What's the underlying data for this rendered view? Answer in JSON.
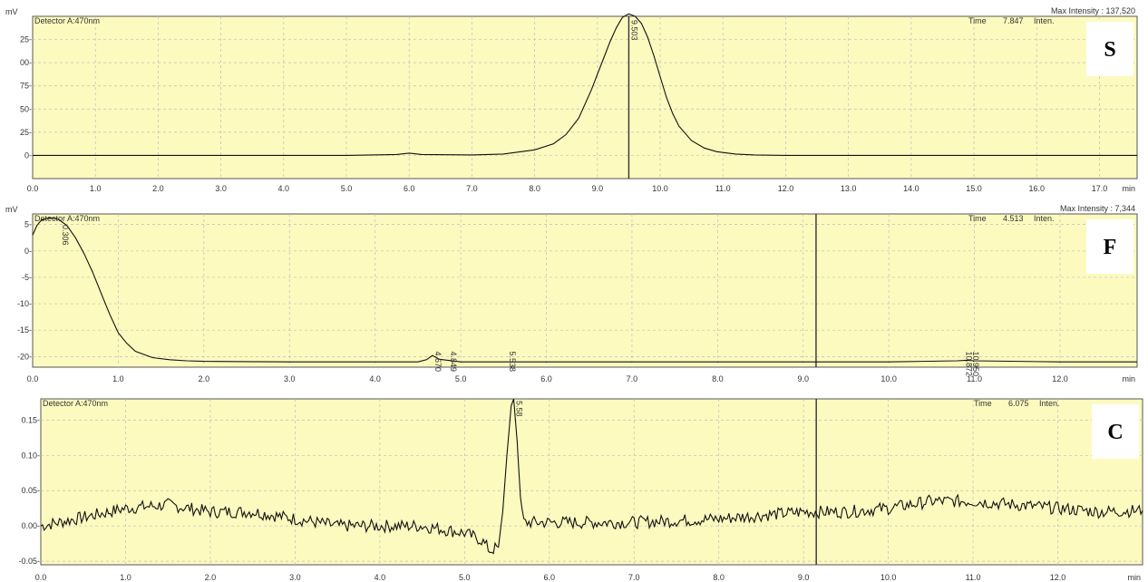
{
  "colors": {
    "plot_bg": "#fdfabf",
    "grid": "#bdbdbd",
    "trace": "#111111",
    "axis": "#555555"
  },
  "chart_data": [
    {
      "type": "line",
      "panel_letter": "S",
      "y_unit": "mV",
      "x_unit": "min",
      "detector_label": "Detector A:470nm",
      "max_intensity_text": "Max Intensity : 137,520",
      "time_label": "Time",
      "time_value": "7.847",
      "inten_label": "Inten.",
      "xlim": [
        0,
        17.6
      ],
      "ylim": [
        -5,
        30
      ],
      "x_ticks": [
        0,
        1,
        2,
        3,
        4,
        5,
        6,
        7,
        8,
        9,
        10,
        11,
        12,
        13,
        14,
        15,
        16,
        17
      ],
      "x_tick_labels": [
        "0.0",
        "1.0",
        "2.0",
        "3.0",
        "4.0",
        "5.0",
        "6.0",
        "7.0",
        "8.0",
        "9.0",
        "10.0",
        "11.0",
        "12.0",
        "13.0",
        "14.0",
        "15.0",
        "16.0",
        "17.0"
      ],
      "y_ticks": [
        0,
        5,
        10,
        15,
        20,
        25
      ],
      "y_tick_labels": [
        "0-",
        "25-",
        "50-",
        "75-",
        "00-",
        "25-"
      ],
      "cursor_x": 9.5,
      "peak_labels": [
        {
          "x": 9.5,
          "text": "9.503"
        }
      ],
      "series": [
        {
          "x": [
            0,
            1,
            2,
            3,
            4,
            5,
            5.8,
            6.0,
            6.2,
            7,
            7.5,
            8,
            8.3,
            8.5,
            8.7,
            8.9,
            9.0,
            9.1,
            9.2,
            9.3,
            9.4,
            9.5,
            9.6,
            9.7,
            9.8,
            9.9,
            10.0,
            10.1,
            10.2,
            10.3,
            10.5,
            10.7,
            10.9,
            11.2,
            11.5,
            12,
            13,
            14,
            15,
            16,
            17,
            17.6
          ],
          "y": [
            0,
            0,
            0,
            0,
            0,
            0,
            0.2,
            0.5,
            0.2,
            0.1,
            0.3,
            1.2,
            2.5,
            4.5,
            8,
            14,
            17.5,
            21,
            24.5,
            27.5,
            29.8,
            30.5,
            30,
            28.5,
            25.5,
            21.5,
            17,
            12.5,
            9,
            6.3,
            3.2,
            1.6,
            0.8,
            0.3,
            0.1,
            0,
            0,
            0,
            0,
            0,
            0,
            0
          ]
        }
      ]
    },
    {
      "type": "line",
      "panel_letter": "F",
      "y_unit": "mV",
      "x_unit": "min",
      "detector_label": "Detector A:470nm",
      "max_intensity_text": "Max Intensity :  7,344",
      "time_label": "Time",
      "time_value": "4.513",
      "inten_label": "Inten.",
      "xlim": [
        0,
        12.9
      ],
      "ylim": [
        -22,
        7
      ],
      "x_ticks": [
        0,
        1,
        2,
        3,
        4,
        5,
        6,
        7,
        8,
        9,
        10,
        11,
        12
      ],
      "x_tick_labels": [
        "0.0",
        "1.0",
        "2.0",
        "3.0",
        "4.0",
        "5.0",
        "6.0",
        "7.0",
        "8.0",
        "9.0",
        "10.0",
        "11.0",
        "12.0"
      ],
      "y_ticks": [
        -20,
        -15,
        -10,
        -5,
        0,
        5
      ],
      "y_tick_labels": [
        "-20-",
        "-15-",
        "-10-",
        "-5-",
        "0-",
        "5-"
      ],
      "cursor_x": 9.15,
      "peak_labels": [
        {
          "x": 0.32,
          "text": "0.306"
        },
        {
          "x": 4.67,
          "text": "4.670"
        },
        {
          "x": 4.85,
          "text": "4.849"
        },
        {
          "x": 5.54,
          "text": "5.538"
        },
        {
          "x": 10.87,
          "text": "10.872"
        },
        {
          "x": 10.95,
          "text": "10.950"
        }
      ],
      "series": [
        {
          "x": [
            0,
            0.05,
            0.1,
            0.2,
            0.3,
            0.4,
            0.5,
            0.6,
            0.7,
            0.8,
            0.9,
            1.0,
            1.1,
            1.2,
            1.4,
            1.6,
            1.8,
            2.0,
            3,
            4,
            4.5,
            4.6,
            4.67,
            4.75,
            4.85,
            5,
            5.5,
            6,
            7,
            8,
            9,
            10,
            10.8,
            10.9,
            11,
            12,
            12.9
          ],
          "y": [
            3,
            4.8,
            5.8,
            6.3,
            6.0,
            4.8,
            2.5,
            -0.5,
            -4,
            -8,
            -12,
            -15.5,
            -17.5,
            -19,
            -20.2,
            -20.6,
            -20.8,
            -20.9,
            -21,
            -21,
            -21,
            -20.6,
            -19.8,
            -20.5,
            -20.7,
            -21,
            -21,
            -21,
            -21,
            -21,
            -21,
            -21,
            -20.8,
            -20.7,
            -20.8,
            -21,
            -21
          ]
        }
      ]
    },
    {
      "type": "line",
      "panel_letter": "C",
      "y_unit": "",
      "x_unit": "min",
      "detector_label": "Detector A:470nm",
      "time_label": "Time",
      "time_value": "6.075",
      "inten_label": "Inten.",
      "xlim": [
        0,
        13.0
      ],
      "ylim": [
        -0.055,
        0.18
      ],
      "x_ticks": [
        0,
        1,
        2,
        3,
        4,
        5,
        6,
        7,
        8,
        9,
        10,
        11,
        12
      ],
      "x_tick_labels": [
        "0.0",
        "1.0",
        "2.0",
        "3.0",
        "4.0",
        "5.0",
        "6.0",
        "7.0",
        "8.0",
        "9.0",
        "10.0",
        "11.0",
        "12.0"
      ],
      "y_ticks": [
        -0.05,
        0,
        0.05,
        0.1,
        0.15
      ],
      "y_tick_labels": [
        "-0.05-",
        "0.00-",
        "0.05-",
        "0.10-",
        "0.15-"
      ],
      "cursor_x": 9.15,
      "peak_labels": [
        {
          "x": 5.58,
          "text": "5.58"
        }
      ],
      "series": [
        {
          "x": [
            0,
            0.5,
            1,
            1.5,
            2,
            2.5,
            3,
            3.5,
            4,
            4.5,
            5,
            5.2,
            5.3,
            5.4,
            5.45,
            5.5,
            5.55,
            5.58,
            5.62,
            5.66,
            5.7,
            5.8,
            6,
            7,
            8,
            9,
            9.5,
            10,
            10.5,
            11,
            11.5,
            12,
            12.5,
            13
          ],
          "y": [
            0.0,
            0.012,
            0.025,
            0.03,
            0.02,
            0.02,
            0.01,
            0.0,
            0.0,
            0.0,
            -0.01,
            -0.02,
            -0.035,
            -0.03,
            0.02,
            0.1,
            0.17,
            0.18,
            0.12,
            0.04,
            0.005,
            0.005,
            0.005,
            0.005,
            0.01,
            0.02,
            0.02,
            0.025,
            0.035,
            0.035,
            0.03,
            0.025,
            0.02,
            0.022
          ]
        }
      ]
    }
  ]
}
